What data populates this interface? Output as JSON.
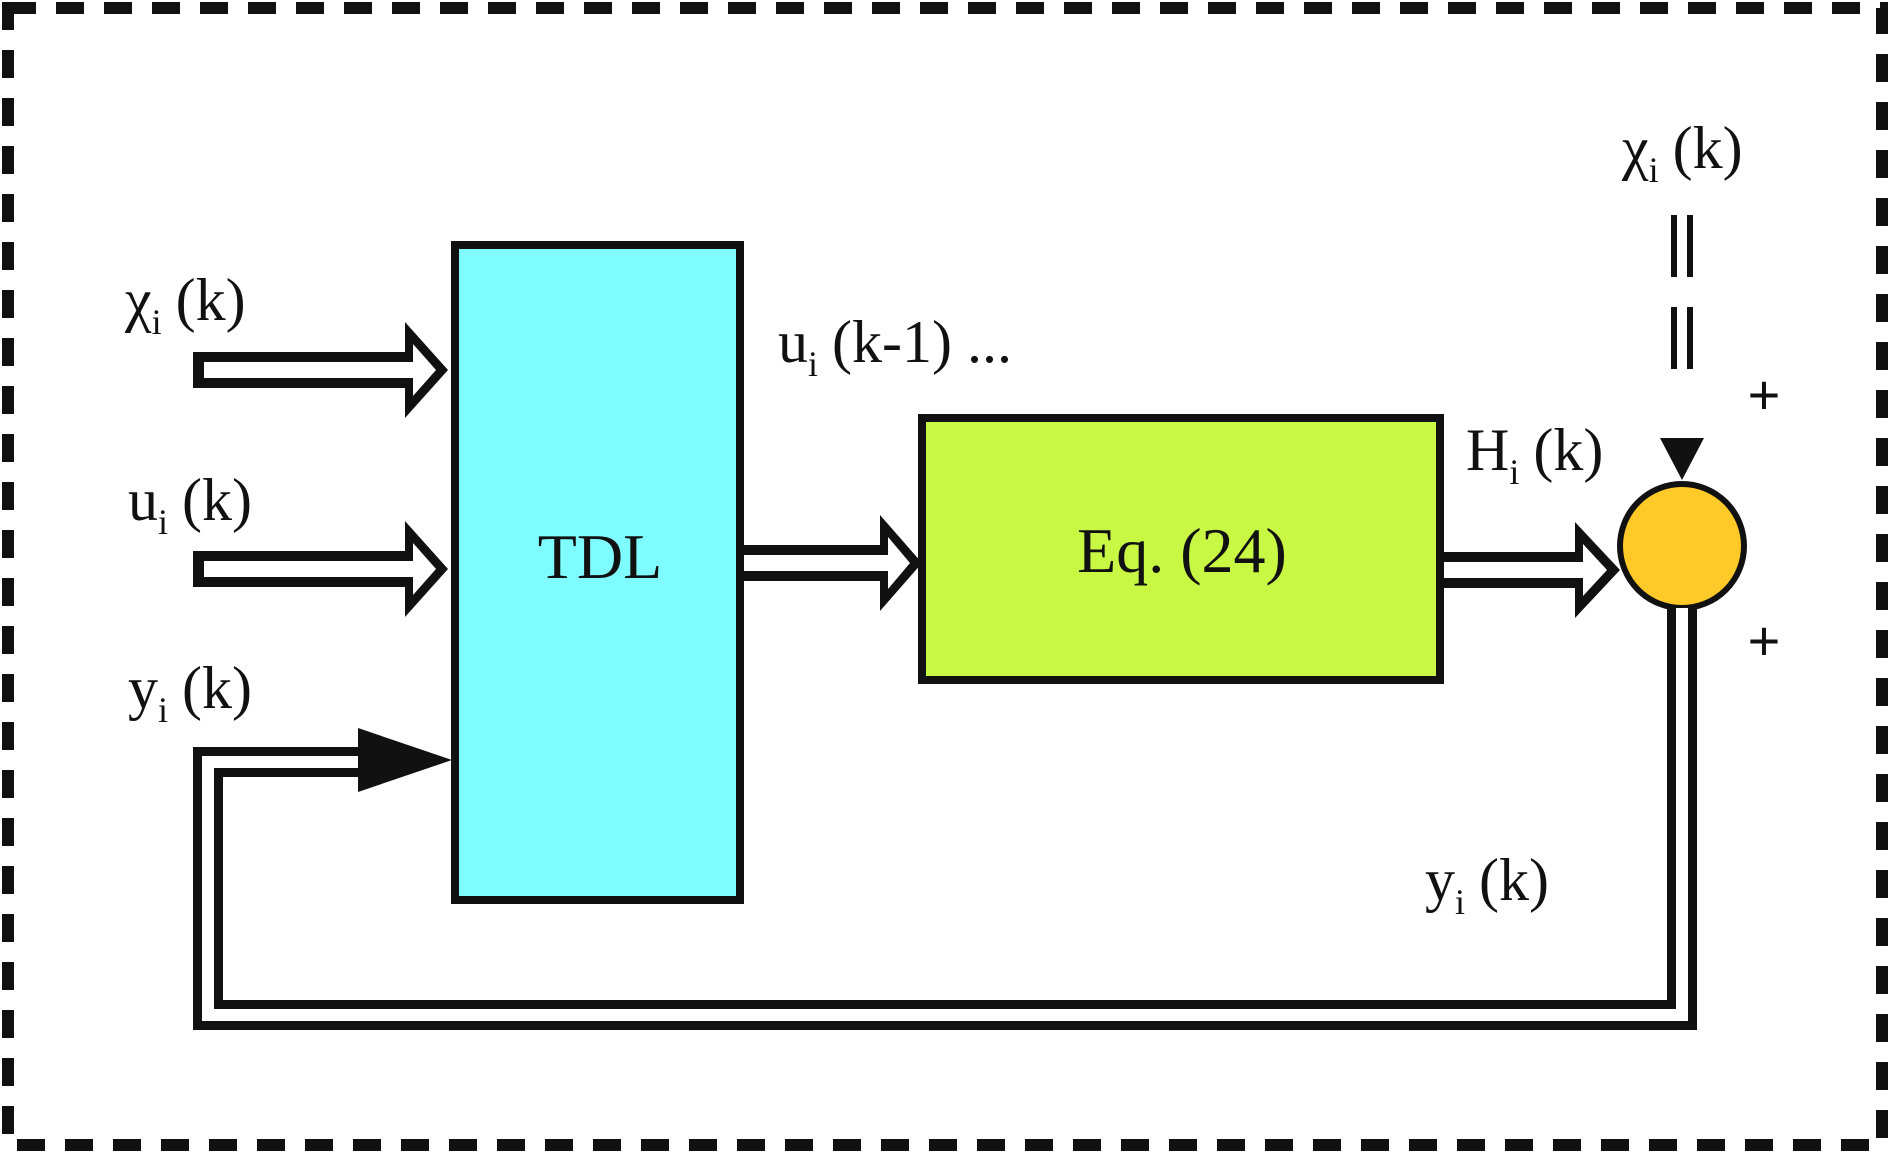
{
  "blocks": {
    "tdl": {
      "label": "TDL",
      "color": "#7ffcff"
    },
    "eq": {
      "label": "Eq. (24)",
      "color": "#c8f744"
    },
    "sum": {
      "color": "#ffc928"
    }
  },
  "labels": {
    "chi_in": {
      "main": "χ",
      "sub": "i",
      "tail": "(k)"
    },
    "u_in": {
      "main": "u",
      "sub": "i",
      "tail": "(k)"
    },
    "y_in": {
      "main": "y",
      "sub": "i",
      "tail": "(k)"
    },
    "u_delay": {
      "main": "u",
      "sub": "i",
      "tail": "(k-1) ..."
    },
    "h_out": {
      "main": "H",
      "sub": "i",
      "tail": "(k)"
    },
    "chi_top": {
      "main": "χ",
      "sub": "i",
      "tail": "(k)"
    },
    "y_out": {
      "main": "y",
      "sub": "i",
      "tail": "(k)"
    }
  },
  "signs": {
    "top": "+",
    "bottom": "+"
  },
  "colors": {
    "stroke": "#111111",
    "frame": "#111111"
  }
}
